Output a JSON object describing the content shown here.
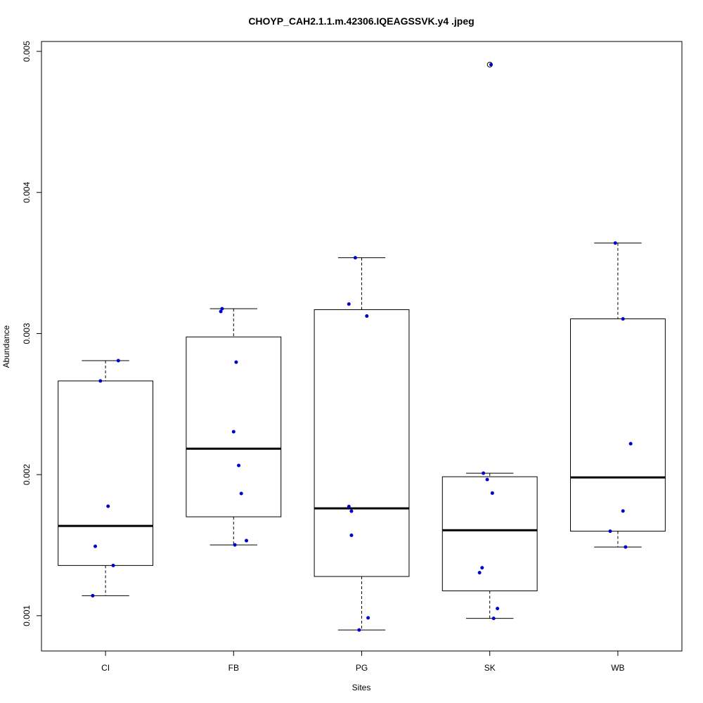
{
  "chart_data": {
    "type": "box",
    "title": "CHOYP_CAH2.1.1.m.42306.IQEAGSSVK.y4 .jpeg",
    "xlabel": "Sites",
    "ylabel": "Abundance",
    "ylim": [
      0.00075,
      0.00507
    ],
    "yticks": [
      "0.001",
      "0.002",
      "0.003",
      "0.004",
      "0.005"
    ],
    "categories": [
      "CI",
      "FB",
      "PG",
      "SK",
      "WB"
    ],
    "boxes": [
      {
        "category": "CI",
        "whisker_low": 0.001142,
        "q1": 0.001356,
        "median": 0.001636,
        "q3": 0.002664,
        "whisker_high": 0.002808,
        "outliers": []
      },
      {
        "category": "FB",
        "whisker_low": 0.001502,
        "q1": 0.001701,
        "median": 0.002184,
        "q3": 0.002976,
        "whisker_high": 0.003176,
        "outliers": []
      },
      {
        "category": "PG",
        "whisker_low": 0.000899,
        "q1": 0.001278,
        "median": 0.001761,
        "q3": 0.003169,
        "whisker_high": 0.003537,
        "outliers": []
      },
      {
        "category": "SK",
        "whisker_low": 0.000981,
        "q1": 0.001176,
        "median": 0.001606,
        "q3": 0.001985,
        "whisker_high": 0.00201,
        "outliers": [
          0.004906
        ]
      },
      {
        "category": "WB",
        "whisker_low": 0.001487,
        "q1": 0.001599,
        "median": 0.00198,
        "q3": 0.003104,
        "whisker_high": 0.003641,
        "outliers": []
      }
    ],
    "points": [
      {
        "category": "CI",
        "jitter": 0.1,
        "value": 0.002808
      },
      {
        "category": "CI",
        "jitter": -0.04,
        "value": 0.002664
      },
      {
        "category": "CI",
        "jitter": 0.02,
        "value": 0.001776
      },
      {
        "category": "CI",
        "jitter": -0.08,
        "value": 0.001492
      },
      {
        "category": "CI",
        "jitter": 0.06,
        "value": 0.001356
      },
      {
        "category": "CI",
        "jitter": -0.1,
        "value": 0.001142
      },
      {
        "category": "FB",
        "jitter": -0.09,
        "value": 0.003176
      },
      {
        "category": "FB",
        "jitter": -0.1,
        "value": 0.003156
      },
      {
        "category": "FB",
        "jitter": 0.02,
        "value": 0.002797
      },
      {
        "category": "FB",
        "jitter": 0.0,
        "value": 0.002304
      },
      {
        "category": "FB",
        "jitter": 0.04,
        "value": 0.002065
      },
      {
        "category": "FB",
        "jitter": 0.06,
        "value": 0.001866
      },
      {
        "category": "FB",
        "jitter": 0.1,
        "value": 0.001532
      },
      {
        "category": "FB",
        "jitter": 0.01,
        "value": 0.001502
      },
      {
        "category": "PG",
        "jitter": -0.05,
        "value": 0.003537
      },
      {
        "category": "PG",
        "jitter": -0.1,
        "value": 0.003209
      },
      {
        "category": "PG",
        "jitter": 0.04,
        "value": 0.003124
      },
      {
        "category": "PG",
        "jitter": -0.1,
        "value": 0.001774
      },
      {
        "category": "PG",
        "jitter": -0.08,
        "value": 0.001741
      },
      {
        "category": "PG",
        "jitter": -0.08,
        "value": 0.00157
      },
      {
        "category": "PG",
        "jitter": 0.05,
        "value": 0.000985
      },
      {
        "category": "PG",
        "jitter": -0.02,
        "value": 0.000899
      },
      {
        "category": "SK",
        "jitter": 0.01,
        "value": 0.004906
      },
      {
        "category": "SK",
        "jitter": -0.05,
        "value": 0.00201
      },
      {
        "category": "SK",
        "jitter": -0.02,
        "value": 0.001965
      },
      {
        "category": "SK",
        "jitter": 0.02,
        "value": 0.001869
      },
      {
        "category": "SK",
        "jitter": -0.06,
        "value": 0.00134
      },
      {
        "category": "SK",
        "jitter": -0.08,
        "value": 0.001305
      },
      {
        "category": "SK",
        "jitter": 0.06,
        "value": 0.001051
      },
      {
        "category": "SK",
        "jitter": 0.03,
        "value": 0.000981
      },
      {
        "category": "WB",
        "jitter": -0.02,
        "value": 0.003641
      },
      {
        "category": "WB",
        "jitter": 0.04,
        "value": 0.003104
      },
      {
        "category": "WB",
        "jitter": 0.1,
        "value": 0.002219
      },
      {
        "category": "WB",
        "jitter": 0.04,
        "value": 0.001742
      },
      {
        "category": "WB",
        "jitter": -0.06,
        "value": 0.001599
      },
      {
        "category": "WB",
        "jitter": 0.06,
        "value": 0.001487
      }
    ],
    "grid": false,
    "legend": "none",
    "colors": {
      "points": "#0000cd",
      "box_stroke": "#000000",
      "outlier": "#000000"
    }
  }
}
